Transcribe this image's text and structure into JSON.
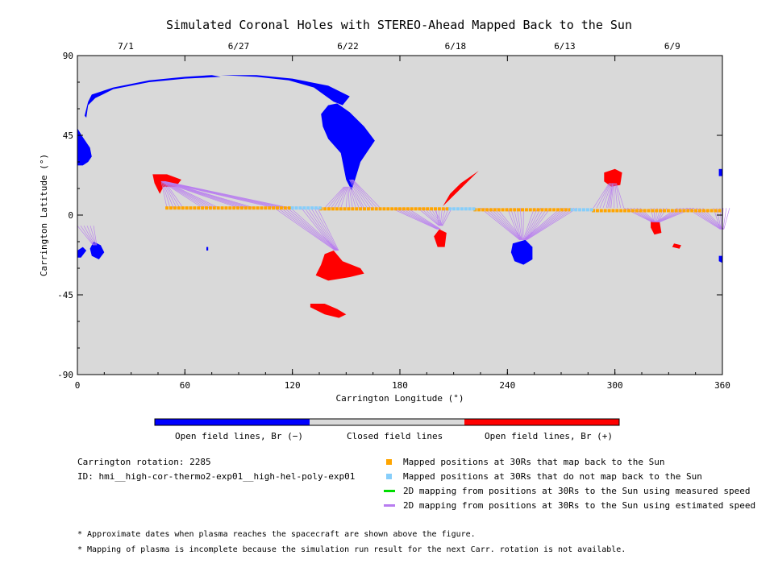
{
  "title": "Simulated Coronal Holes with STEREO-Ahead Mapped Back to the Sun",
  "chart_data": {
    "type": "scatter",
    "xlabel": "Carrington Longitude (°)",
    "ylabel": "Carrington Latitude (°)",
    "xlim": [
      0,
      360
    ],
    "ylim": [
      -90,
      90
    ],
    "x_ticks": [
      "0",
      "60",
      "120",
      "180",
      "240",
      "300",
      "360"
    ],
    "y_ticks": [
      "90",
      "45",
      "0",
      "-45",
      "-90"
    ],
    "background_color": "#d9d9d9",
    "top_axis_dates": [
      {
        "label": "7/1",
        "x": 27
      },
      {
        "label": "6/27",
        "x": 90
      },
      {
        "label": "6/22",
        "x": 151
      },
      {
        "label": "6/18",
        "x": 211
      },
      {
        "label": "6/13",
        "x": 272
      },
      {
        "label": "6/9",
        "x": 332
      }
    ],
    "colors": {
      "open_negative": "#0000ff",
      "closed": "#d9d9d9",
      "open_positive": "#ff0000",
      "mapped_back": "#ffa500",
      "not_mapped": "#87cefa",
      "measured_speed": "#00dd00",
      "estimated_speed": "#b87cf0"
    },
    "coronal_holes": [
      {
        "polarity": "negative",
        "outline": [
          [
            0,
            49
          ],
          [
            3,
            44
          ],
          [
            7,
            38
          ],
          [
            8,
            33
          ],
          [
            6,
            30
          ],
          [
            3,
            28
          ],
          [
            0,
            28
          ]
        ]
      },
      {
        "polarity": "negative",
        "outline": [
          [
            4,
            56
          ],
          [
            6,
            64
          ],
          [
            8,
            68
          ],
          [
            20,
            72
          ],
          [
            40,
            76
          ],
          [
            60,
            78
          ],
          [
            75,
            79
          ],
          [
            80,
            78
          ],
          [
            60,
            77
          ],
          [
            40,
            75
          ],
          [
            20,
            71
          ],
          [
            10,
            66
          ],
          [
            6,
            62
          ],
          [
            5,
            55
          ]
        ]
      },
      {
        "polarity": "negative",
        "outline": [
          [
            80,
            79
          ],
          [
            100,
            79
          ],
          [
            120,
            77
          ],
          [
            140,
            73
          ],
          [
            152,
            67
          ],
          [
            148,
            62
          ],
          [
            143,
            64
          ],
          [
            132,
            72
          ],
          [
            118,
            76
          ],
          [
            100,
            78
          ]
        ]
      },
      {
        "polarity": "negative",
        "outline": [
          [
            136,
            57
          ],
          [
            140,
            62
          ],
          [
            145,
            63
          ],
          [
            152,
            58
          ],
          [
            160,
            50
          ],
          [
            166,
            42
          ],
          [
            162,
            36
          ],
          [
            158,
            30
          ],
          [
            155,
            20
          ],
          [
            153,
            14
          ],
          [
            150,
            20
          ],
          [
            147,
            35
          ],
          [
            140,
            43
          ],
          [
            137,
            50
          ]
        ]
      },
      {
        "polarity": "negative",
        "outline": [
          [
            9,
            -15
          ],
          [
            13,
            -17
          ],
          [
            15,
            -21
          ],
          [
            12,
            -25
          ],
          [
            8,
            -23
          ],
          [
            7,
            -19
          ]
        ]
      },
      {
        "polarity": "negative",
        "outline": [
          [
            0,
            -20
          ],
          [
            3,
            -18
          ],
          [
            5,
            -20
          ],
          [
            2,
            -24
          ],
          [
            0,
            -24
          ]
        ]
      },
      {
        "polarity": "negative",
        "outline": [
          [
            243,
            -16
          ],
          [
            250,
            -14
          ],
          [
            254,
            -18
          ],
          [
            254,
            -25
          ],
          [
            249,
            -28
          ],
          [
            244,
            -26
          ],
          [
            242,
            -21
          ]
        ]
      },
      {
        "polarity": "negative",
        "outline": [
          [
            358,
            26
          ],
          [
            360,
            26
          ],
          [
            360,
            22
          ],
          [
            358,
            22
          ]
        ]
      },
      {
        "polarity": "negative",
        "outline": [
          [
            358,
            -23
          ],
          [
            360,
            -23
          ],
          [
            360,
            -27
          ],
          [
            358,
            -26
          ]
        ]
      },
      {
        "polarity": "negative",
        "outline": [
          [
            72,
            -18
          ],
          [
            73,
            -18
          ],
          [
            73,
            -20
          ],
          [
            72,
            -20
          ]
        ]
      },
      {
        "polarity": "positive",
        "outline": [
          [
            42,
            23
          ],
          [
            50,
            23
          ],
          [
            58,
            20
          ],
          [
            55,
            16
          ],
          [
            48,
            16
          ],
          [
            46,
            12
          ],
          [
            43,
            18
          ]
        ]
      },
      {
        "polarity": "positive",
        "outline": [
          [
            138,
            -22
          ],
          [
            143,
            -20
          ],
          [
            148,
            -26
          ],
          [
            158,
            -30
          ],
          [
            160,
            -33
          ],
          [
            152,
            -35
          ],
          [
            140,
            -37
          ],
          [
            133,
            -34
          ],
          [
            136,
            -28
          ]
        ]
      },
      {
        "polarity": "positive",
        "outline": [
          [
            130,
            -50
          ],
          [
            138,
            -50
          ],
          [
            145,
            -53
          ],
          [
            150,
            -56
          ],
          [
            146,
            -58
          ],
          [
            138,
            -56
          ],
          [
            130,
            -52
          ]
        ]
      },
      {
        "polarity": "positive",
        "outline": [
          [
            202,
            -8
          ],
          [
            206,
            -10
          ],
          [
            205,
            -18
          ],
          [
            201,
            -18
          ],
          [
            199,
            -12
          ]
        ]
      },
      {
        "polarity": "positive",
        "outline": [
          [
            204,
            5
          ],
          [
            208,
            12
          ],
          [
            214,
            18
          ],
          [
            224,
            25
          ],
          [
            222,
            23
          ],
          [
            214,
            15
          ],
          [
            207,
            8
          ]
        ]
      },
      {
        "polarity": "positive",
        "outline": [
          [
            294,
            24
          ],
          [
            300,
            26
          ],
          [
            304,
            24
          ],
          [
            303,
            17
          ],
          [
            298,
            16
          ],
          [
            294,
            19
          ]
        ]
      },
      {
        "polarity": "positive",
        "outline": [
          [
            320,
            -3
          ],
          [
            325,
            -4
          ],
          [
            326,
            -10
          ],
          [
            322,
            -11
          ],
          [
            320,
            -7
          ]
        ]
      },
      {
        "polarity": "positive",
        "outline": [
          [
            333,
            -16
          ],
          [
            337,
            -17
          ],
          [
            336,
            -19
          ],
          [
            332,
            -18
          ]
        ]
      }
    ],
    "mapping_segments": [
      {
        "from": [
          50,
          4
        ],
        "to": [
          48,
          19
        ]
      },
      {
        "from": [
          70,
          4
        ],
        "to": [
          48,
          19
        ]
      },
      {
        "from": [
          90,
          4
        ],
        "to": [
          48,
          19
        ]
      },
      {
        "from": [
          110,
          4
        ],
        "to": [
          48,
          19
        ]
      },
      {
        "from": [
          0,
          -6
        ],
        "to": [
          10,
          -17
        ]
      },
      {
        "from": [
          138,
          4
        ],
        "to": [
          150,
          16
        ]
      },
      {
        "from": [
          150,
          4
        ],
        "to": [
          152,
          16
        ]
      },
      {
        "from": [
          160,
          4
        ],
        "to": [
          153,
          20
        ]
      },
      {
        "from": [
          110,
          4
        ],
        "to": [
          145,
          -20
        ]
      },
      {
        "from": [
          125,
          4
        ],
        "to": [
          145,
          -20
        ]
      },
      {
        "from": [
          175,
          4
        ],
        "to": [
          202,
          -8
        ]
      },
      {
        "from": [
          190,
          4
        ],
        "to": [
          203,
          -6
        ]
      },
      {
        "from": [
          200,
          4
        ],
        "to": [
          203,
          -6
        ]
      },
      {
        "from": [
          225,
          4
        ],
        "to": [
          248,
          -14
        ]
      },
      {
        "from": [
          240,
          4
        ],
        "to": [
          248,
          -14
        ]
      },
      {
        "from": [
          255,
          4
        ],
        "to": [
          250,
          -14
        ]
      },
      {
        "from": [
          270,
          4
        ],
        "to": [
          250,
          -14
        ]
      },
      {
        "from": [
          288,
          4
        ],
        "to": [
          298,
          18
        ]
      },
      {
        "from": [
          296,
          4
        ],
        "to": [
          300,
          18
        ]
      },
      {
        "from": [
          305,
          4
        ],
        "to": [
          322,
          -4
        ]
      },
      {
        "from": [
          320,
          4
        ],
        "to": [
          323,
          -4
        ]
      },
      {
        "from": [
          335,
          4
        ],
        "to": [
          324,
          -4
        ]
      },
      {
        "from": [
          340,
          4
        ],
        "to": [
          360,
          -8
        ]
      },
      {
        "from": [
          355,
          4
        ],
        "to": [
          360,
          -8
        ]
      }
    ],
    "mapped_positions_back": [
      {
        "x": 50,
        "x_end": 120,
        "lat": 4
      },
      {
        "x": 136,
        "x_end": 208,
        "lat": 3.5
      },
      {
        "x": 222,
        "x_end": 276,
        "lat": 3
      },
      {
        "x": 288,
        "x_end": 360,
        "lat": 2.5
      }
    ],
    "mapped_positions_not_back": [
      {
        "x": 120,
        "x_end": 136,
        "lat": 4
      },
      {
        "x": 208,
        "x_end": 222,
        "lat": 3.5
      },
      {
        "x": 276,
        "x_end": 288,
        "lat": 3
      }
    ]
  },
  "colorbar": {
    "labels": [
      "Open field lines, Br (−)",
      "Closed field lines",
      "Open field lines, Br (+)"
    ]
  },
  "info": {
    "rotation": "Carrington rotation: 2285",
    "id": "ID: hmi__high-cor-thermo2-exp01__high-hel-poly-exp01"
  },
  "legend": [
    {
      "kind": "square",
      "color": "#ffa500",
      "label": "Mapped positions at 30Rs that map back to the Sun"
    },
    {
      "kind": "square",
      "color": "#87cefa",
      "label": "Mapped positions at 30Rs that do not map back to the Sun"
    },
    {
      "kind": "line",
      "color": "#00dd00",
      "label": "2D mapping from positions at 30Rs to the Sun using measured speed"
    },
    {
      "kind": "line",
      "color": "#b87cf0",
      "label": "2D mapping from positions at 30Rs to the Sun using estimated speed"
    }
  ],
  "footnotes": [
    "* Approximate dates when plasma reaches the spacecraft are shown above the figure.",
    "* Mapping of plasma is incomplete because the simulation run result for the next Carr. rotation is not available."
  ]
}
